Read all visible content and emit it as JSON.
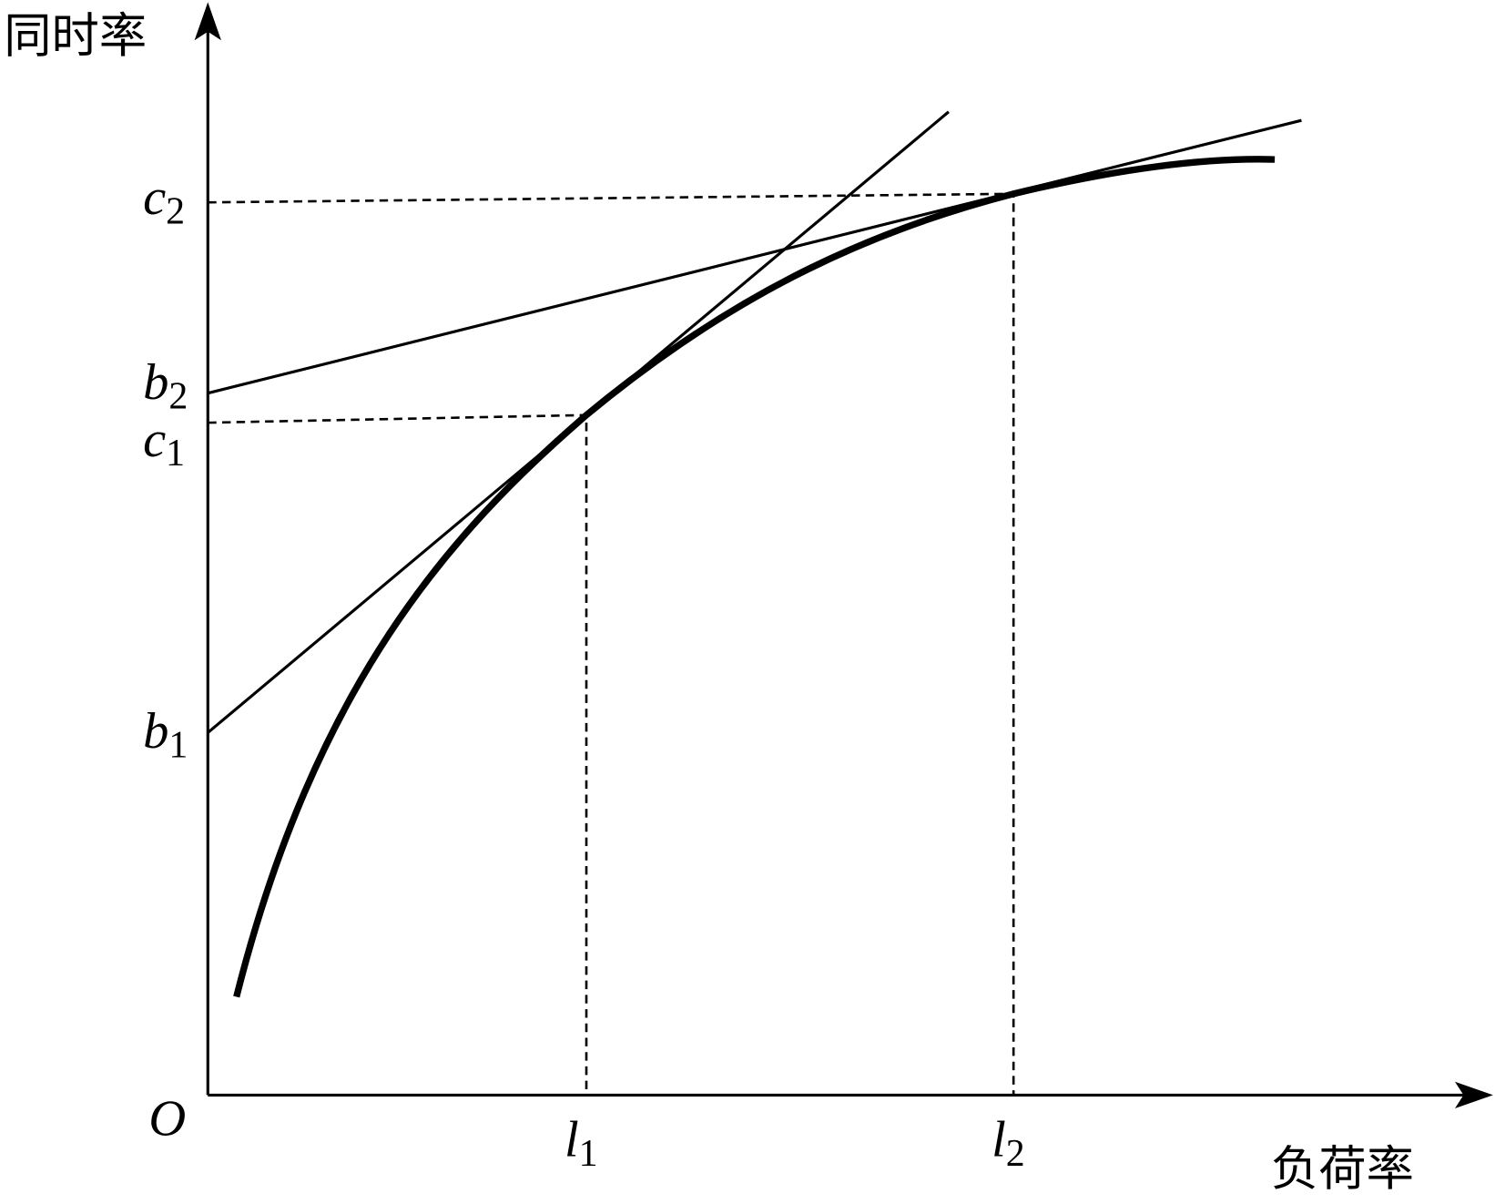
{
  "axes": {
    "y_label": "同时率",
    "x_label": "负荷率",
    "origin": "O"
  },
  "labels": [
    {
      "main": "c",
      "sub": "2"
    },
    {
      "main": "b",
      "sub": "2"
    },
    {
      "main": "c",
      "sub": "1"
    },
    {
      "main": "b",
      "sub": "1"
    },
    {
      "main": "l",
      "sub": "1"
    },
    {
      "main": "l",
      "sub": "2"
    }
  ]
}
